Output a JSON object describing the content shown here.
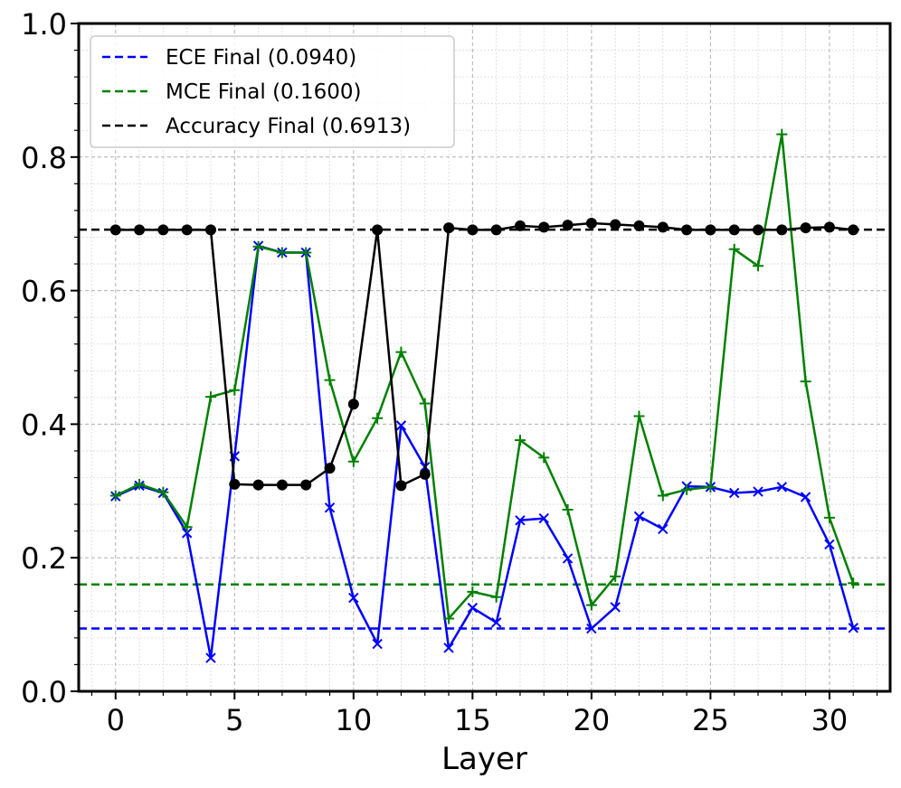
{
  "chart_data": {
    "type": "line",
    "title": "",
    "xlabel": "Layer",
    "ylabel": "",
    "xlim": [
      -1.55,
      32.55
    ],
    "ylim": [
      0.0,
      1.0
    ],
    "xticks": [
      0,
      5,
      10,
      15,
      20,
      25,
      30
    ],
    "yticks": [
      0.0,
      0.2,
      0.4,
      0.6,
      0.8,
      1.0
    ],
    "xtick_labels": [
      "0",
      "5",
      "10",
      "15",
      "20",
      "25",
      "30"
    ],
    "ytick_labels": [
      "0.0",
      "0.2",
      "0.4",
      "0.6",
      "0.8",
      "1.0"
    ],
    "grid": true,
    "minor_grid": true,
    "legend_position": "top-left",
    "x": [
      0,
      1,
      2,
      3,
      4,
      5,
      6,
      7,
      8,
      9,
      10,
      11,
      12,
      13,
      14,
      15,
      16,
      17,
      18,
      19,
      20,
      21,
      22,
      23,
      24,
      25,
      26,
      27,
      28,
      29,
      30,
      31
    ],
    "series": [
      {
        "key": "ece",
        "color": "#0000ff",
        "marker": "x",
        "values": [
          0.292,
          0.308,
          0.297,
          0.237,
          0.05,
          0.352,
          0.667,
          0.657,
          0.657,
          0.275,
          0.14,
          0.071,
          0.398,
          0.336,
          0.065,
          0.125,
          0.103,
          0.256,
          0.259,
          0.199,
          0.094,
          0.126,
          0.262,
          0.243,
          0.307,
          0.306,
          0.297,
          0.299,
          0.306,
          0.291,
          0.22,
          0.095
        ]
      },
      {
        "key": "mce",
        "color": "#008000",
        "marker": "plus",
        "values": [
          0.293,
          0.31,
          0.298,
          0.246,
          0.441,
          0.451,
          0.666,
          0.657,
          0.657,
          0.466,
          0.344,
          0.409,
          0.508,
          0.431,
          0.109,
          0.149,
          0.141,
          0.376,
          0.35,
          0.272,
          0.129,
          0.172,
          0.412,
          0.293,
          0.302,
          0.306,
          0.662,
          0.637,
          0.834,
          0.464,
          0.26,
          0.162
        ]
      },
      {
        "key": "accuracy",
        "color": "#000000",
        "marker": "circle",
        "values": [
          0.691,
          0.691,
          0.691,
          0.691,
          0.691,
          0.31,
          0.309,
          0.309,
          0.309,
          0.334,
          0.43,
          0.691,
          0.308,
          0.325,
          0.694,
          0.691,
          0.691,
          0.697,
          0.695,
          0.698,
          0.701,
          0.699,
          0.697,
          0.695,
          0.691,
          0.691,
          0.691,
          0.691,
          0.691,
          0.694,
          0.695,
          0.691
        ]
      }
    ],
    "reference_lines": [
      {
        "label": "ECE Final (0.0940)",
        "value": 0.094,
        "color": "#0000ff"
      },
      {
        "label": "MCE Final (0.1600)",
        "value": 0.16,
        "color": "#008000"
      },
      {
        "label": "Accuracy Final (0.6913)",
        "value": 0.6913,
        "color": "#000000"
      }
    ]
  }
}
